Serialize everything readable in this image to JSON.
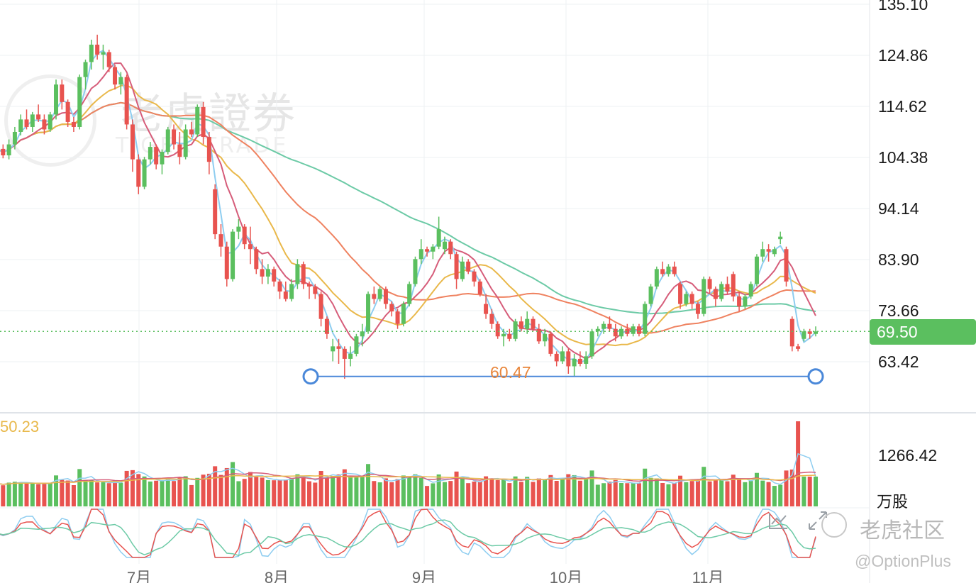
{
  "chart_data": {
    "type": "candlestick",
    "y_axis": {
      "ticks": [
        "135.10",
        "124.86",
        "114.62",
        "104.38",
        "94.14",
        "83.90",
        "73.66",
        "63.42"
      ],
      "range": [
        57.0,
        135.1
      ]
    },
    "x_axis": {
      "months": [
        "7月",
        "8月",
        "9月",
        "10月",
        "11月"
      ]
    },
    "current_price": "69.50",
    "horizontal_level": {
      "value": 60.47,
      "label": "60.47"
    },
    "colors": {
      "up": "#5bbf5f",
      "down": "#e8534f",
      "ma5": "#8ecdf0",
      "ma10": "#d65d7a",
      "ma20": "#e9b84a",
      "ma60": "#ef8260",
      "ma120": "#6ccaa6",
      "level": "#4a88d9"
    },
    "volume": {
      "ma_label": "50.23",
      "tick": "1266.42",
      "unit": "万股"
    },
    "candles": [
      [
        107.2,
        109.2,
        105.5,
        106.1
      ],
      [
        106.1,
        107.0,
        104.2,
        104.8
      ],
      [
        104.8,
        108.0,
        104.0,
        107.0
      ],
      [
        107.0,
        110.5,
        106.0,
        109.5
      ],
      [
        109.5,
        113.0,
        108.8,
        112.0
      ],
      [
        112.0,
        114.0,
        110.0,
        110.5
      ],
      [
        110.5,
        113.5,
        109.5,
        113.0
      ],
      [
        113.0,
        115.0,
        111.5,
        112.0
      ],
      [
        112.0,
        113.0,
        109.0,
        110.0
      ],
      [
        110.0,
        113.5,
        109.5,
        113.0
      ],
      [
        113.0,
        120.0,
        112.0,
        119.0
      ],
      [
        119.0,
        120.0,
        114.0,
        115.5
      ],
      [
        115.5,
        116.0,
        110.5,
        111.5
      ],
      [
        111.5,
        112.5,
        109.5,
        110.5
      ],
      [
        110.5,
        121.0,
        110.0,
        120.5
      ],
      [
        120.5,
        124.0,
        118.0,
        123.5
      ],
      [
        123.5,
        128.0,
        122.0,
        127.0
      ],
      [
        127.0,
        129.0,
        124.0,
        125.0
      ],
      [
        125.0,
        127.0,
        122.0,
        125.5
      ],
      [
        125.5,
        126.0,
        121.5,
        122.5
      ],
      [
        122.5,
        123.0,
        118.0,
        119.0
      ],
      [
        119.0,
        121.5,
        117.0,
        120.5
      ],
      [
        120.5,
        121.0,
        110.0,
        111.0
      ],
      [
        111.0,
        112.0,
        101.5,
        104.0
      ],
      [
        104.0,
        105.0,
        97.0,
        98.5
      ],
      [
        98.5,
        104.5,
        98.0,
        104.0
      ],
      [
        104.0,
        107.5,
        103.0,
        106.5
      ],
      [
        106.5,
        107.0,
        102.0,
        103.0
      ],
      [
        103.0,
        106.0,
        101.0,
        105.5
      ],
      [
        105.5,
        110.5,
        105.0,
        110.0
      ],
      [
        110.0,
        111.0,
        106.0,
        107.0
      ],
      [
        107.0,
        109.5,
        103.0,
        104.5
      ],
      [
        104.5,
        111.0,
        104.0,
        110.0
      ],
      [
        110.0,
        111.5,
        108.5,
        109.0
      ],
      [
        109.0,
        115.0,
        108.5,
        114.5
      ],
      [
        114.5,
        115.5,
        107.0,
        108.5
      ],
      [
        108.5,
        109.5,
        101.0,
        103.5
      ],
      [
        98.0,
        99.0,
        88.0,
        89.0
      ],
      [
        89.0,
        91.0,
        84.5,
        86.5
      ],
      [
        86.5,
        87.5,
        78.5,
        80.0
      ],
      [
        80.0,
        90.0,
        79.5,
        89.5
      ],
      [
        89.5,
        92.0,
        88.0,
        90.5
      ],
      [
        90.5,
        91.0,
        86.0,
        87.0
      ],
      [
        87.0,
        90.5,
        83.0,
        86.0
      ],
      [
        86.0,
        86.5,
        81.0,
        82.0
      ],
      [
        82.0,
        84.0,
        79.0,
        80.5
      ],
      [
        80.5,
        83.0,
        79.0,
        82.0
      ],
      [
        82.0,
        82.5,
        78.5,
        79.5
      ],
      [
        79.5,
        80.0,
        76.0,
        77.5
      ],
      [
        77.5,
        79.5,
        75.5,
        76.0
      ],
      [
        76.0,
        80.0,
        75.5,
        79.0
      ],
      [
        79.0,
        84.0,
        78.0,
        83.0
      ],
      [
        83.0,
        83.5,
        78.0,
        79.0
      ],
      [
        79.0,
        79.5,
        76.0,
        78.5
      ],
      [
        78.5,
        79.0,
        76.0,
        77.0
      ],
      [
        77.0,
        77.5,
        70.5,
        72.0
      ],
      [
        72.0,
        72.5,
        68.0,
        69.0
      ],
      [
        65.5,
        68.0,
        63.5,
        66.5
      ],
      [
        66.5,
        68.0,
        63.0,
        66.0
      ],
      [
        66.0,
        66.5,
        60.0,
        64.0
      ],
      [
        64.0,
        66.5,
        62.5,
        65.0
      ],
      [
        65.0,
        69.0,
        64.5,
        68.5
      ],
      [
        68.5,
        71.0,
        66.5,
        69.5
      ],
      [
        69.5,
        77.5,
        69.0,
        77.0
      ],
      [
        77.0,
        78.5,
        75.0,
        76.0
      ],
      [
        76.0,
        78.5,
        75.5,
        78.0
      ],
      [
        78.0,
        78.5,
        74.0,
        75.0
      ],
      [
        75.0,
        75.5,
        72.5,
        73.5
      ],
      [
        73.5,
        74.0,
        70.0,
        71.0
      ],
      [
        71.0,
        75.5,
        70.5,
        75.0
      ],
      [
        75.0,
        79.5,
        74.5,
        79.0
      ],
      [
        79.0,
        84.5,
        78.5,
        84.0
      ],
      [
        84.0,
        88.0,
        83.0,
        86.0
      ],
      [
        86.0,
        86.5,
        84.5,
        85.5
      ],
      [
        85.5,
        87.0,
        84.0,
        86.5
      ],
      [
        86.5,
        92.5,
        86.0,
        90.0
      ],
      [
        86.0,
        88.5,
        85.0,
        87.5
      ],
      [
        87.5,
        88.0,
        84.0,
        85.0
      ],
      [
        85.0,
        85.5,
        78.0,
        80.0
      ],
      [
        80.0,
        84.5,
        79.5,
        83.5
      ],
      [
        83.5,
        84.0,
        81.0,
        81.5
      ],
      [
        81.5,
        82.0,
        78.5,
        79.5
      ],
      [
        79.5,
        80.0,
        76.5,
        77.0
      ],
      [
        75.0,
        77.0,
        72.0,
        73.0
      ],
      [
        73.0,
        74.0,
        70.0,
        71.0
      ],
      [
        71.0,
        71.5,
        68.0,
        68.5
      ],
      [
        68.5,
        70.0,
        66.5,
        69.0
      ],
      [
        69.0,
        70.0,
        67.5,
        68.0
      ],
      [
        68.0,
        72.0,
        67.5,
        71.5
      ],
      [
        71.5,
        72.5,
        69.5,
        70.0
      ],
      [
        70.0,
        73.5,
        69.0,
        72.0
      ],
      [
        72.0,
        72.5,
        69.5,
        70.0
      ],
      [
        70.0,
        71.0,
        67.0,
        67.5
      ],
      [
        67.5,
        70.0,
        66.5,
        69.0
      ],
      [
        69.0,
        69.5,
        64.5,
        65.0
      ],
      [
        65.0,
        65.5,
        62.5,
        63.5
      ],
      [
        63.5,
        66.5,
        63.0,
        65.5
      ],
      [
        65.5,
        66.0,
        61.0,
        62.5
      ],
      [
        62.5,
        65.0,
        60.5,
        64.0
      ],
      [
        64.0,
        65.5,
        62.5,
        63.0
      ],
      [
        63.0,
        65.5,
        62.0,
        64.5
      ],
      [
        64.5,
        70.0,
        64.0,
        69.5
      ],
      [
        69.5,
        70.5,
        68.5,
        70.0
      ],
      [
        70.0,
        71.5,
        69.0,
        71.0
      ],
      [
        71.0,
        72.5,
        69.5,
        70.0
      ],
      [
        70.0,
        71.0,
        67.5,
        68.5
      ],
      [
        68.5,
        70.5,
        68.0,
        70.0
      ],
      [
        70.0,
        71.0,
        68.5,
        69.0
      ],
      [
        69.0,
        71.0,
        68.5,
        70.5
      ],
      [
        70.5,
        71.0,
        68.5,
        69.0
      ],
      [
        69.0,
        75.5,
        68.5,
        75.0
      ],
      [
        75.0,
        79.0,
        74.5,
        78.5
      ],
      [
        78.5,
        82.5,
        78.0,
        82.0
      ],
      [
        82.0,
        83.5,
        80.5,
        81.0
      ],
      [
        81.0,
        83.0,
        80.5,
        82.5
      ],
      [
        82.5,
        83.5,
        80.5,
        81.0
      ],
      [
        79.0,
        79.5,
        74.0,
        75.0
      ],
      [
        75.0,
        77.5,
        74.5,
        77.0
      ],
      [
        77.0,
        77.5,
        74.0,
        75.0
      ],
      [
        75.0,
        75.5,
        72.0,
        73.0
      ],
      [
        73.0,
        80.5,
        72.5,
        80.0
      ],
      [
        80.0,
        80.5,
        77.0,
        78.0
      ],
      [
        78.0,
        78.5,
        74.5,
        76.0
      ],
      [
        76.0,
        79.5,
        75.5,
        79.0
      ],
      [
        79.0,
        80.5,
        77.0,
        77.5
      ],
      [
        81.0,
        81.5,
        75.5,
        76.5
      ],
      [
        76.5,
        77.5,
        73.5,
        74.5
      ],
      [
        74.5,
        77.0,
        74.0,
        76.5
      ],
      [
        76.5,
        79.5,
        76.0,
        79.0
      ],
      [
        79.0,
        85.0,
        78.5,
        84.5
      ],
      [
        84.5,
        87.5,
        83.5,
        86.0
      ],
      [
        86.0,
        87.0,
        83.5,
        85.5
      ],
      [
        85.0,
        86.5,
        84.5,
        86.0
      ],
      [
        88.0,
        89.5,
        87.0,
        88.5
      ],
      [
        86.0,
        86.5,
        78.5,
        79.5
      ],
      [
        72.0,
        72.5,
        65.5,
        66.5
      ],
      [
        66.5,
        67.0,
        65.5,
        66.0
      ],
      [
        68.0,
        70.0,
        67.5,
        69.5
      ],
      [
        69.5,
        70.0,
        68.0,
        69.0
      ],
      [
        69.0,
        70.5,
        68.5,
        69.5
      ]
    ]
  }
}
